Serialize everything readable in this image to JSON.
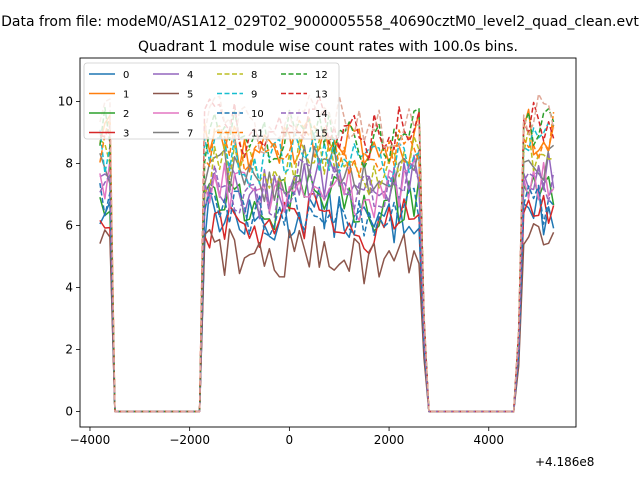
{
  "suptitle": "Data from file: modeM0/AS1A12_029T02_9000005558_40690cztM0_level2_quad_clean.evt",
  "chart_data": {
    "type": "line",
    "title": "Quadrant 1 module wise count rates with 100.0s bins.",
    "xlabel": "",
    "ylabel": "",
    "x_offset_label": "+4.186e8",
    "xlim": [
      -4200,
      5750
    ],
    "ylim": [
      -0.5,
      11.4
    ],
    "xticks": [
      -4000,
      -2000,
      0,
      2000,
      4000
    ],
    "xtick_labels": [
      "−4000",
      "−2000",
      "0",
      "2000",
      "4000"
    ],
    "yticks": [
      0,
      2,
      4,
      6,
      8,
      10
    ],
    "ytick_labels": [
      "0",
      "2",
      "4",
      "6",
      "8",
      "10"
    ],
    "legend_position": "upper-left",
    "legend_columns": 4,
    "segments": [
      {
        "x_start": -3800,
        "x_end": -3600,
        "state": "on"
      },
      {
        "x_start": -3500,
        "x_end": -1800,
        "state": "off"
      },
      {
        "x_start": -1750,
        "x_end": 2650,
        "state": "on"
      },
      {
        "x_start": 2800,
        "x_end": 4550,
        "state": "off"
      },
      {
        "x_start": 4650,
        "x_end": 5300,
        "state": "on"
      }
    ],
    "series": [
      {
        "name": "0",
        "color": "#1f77b4",
        "dash": "solid",
        "mean_rate": 6.0
      },
      {
        "name": "1",
        "color": "#ff7f0e",
        "dash": "solid",
        "mean_rate": 8.3
      },
      {
        "name": "2",
        "color": "#2ca02c",
        "dash": "solid",
        "mean_rate": 6.6
      },
      {
        "name": "3",
        "color": "#d62728",
        "dash": "solid",
        "mean_rate": 5.8
      },
      {
        "name": "4",
        "color": "#9467bd",
        "dash": "solid",
        "mean_rate": 7.0
      },
      {
        "name": "5",
        "color": "#8c564b",
        "dash": "solid",
        "mean_rate": 4.9
      },
      {
        "name": "6",
        "color": "#e377c2",
        "dash": "solid",
        "mean_rate": 6.9
      },
      {
        "name": "7",
        "color": "#7f7f7f",
        "dash": "solid",
        "mean_rate": 7.4
      },
      {
        "name": "8",
        "color": "#bcbd22",
        "dash": "dashed",
        "mean_rate": 7.7
      },
      {
        "name": "9",
        "color": "#17becf",
        "dash": "dashed",
        "mean_rate": 7.9
      },
      {
        "name": "10",
        "color": "#1f77b4",
        "dash": "dashed",
        "mean_rate": 6.2
      },
      {
        "name": "11",
        "color": "#ff7f0e",
        "dash": "dashed",
        "mean_rate": 8.2
      },
      {
        "name": "12",
        "color": "#2ca02c",
        "dash": "dashed",
        "mean_rate": 8.6
      },
      {
        "name": "13",
        "color": "#d62728",
        "dash": "dashed",
        "mean_rate": 8.8
      },
      {
        "name": "14",
        "color": "#9467bd",
        "dash": "dashed",
        "mean_rate": 7.0
      },
      {
        "name": "15",
        "color": "#e0a898",
        "dash": "dashed",
        "mean_rate": 9.0
      }
    ]
  }
}
